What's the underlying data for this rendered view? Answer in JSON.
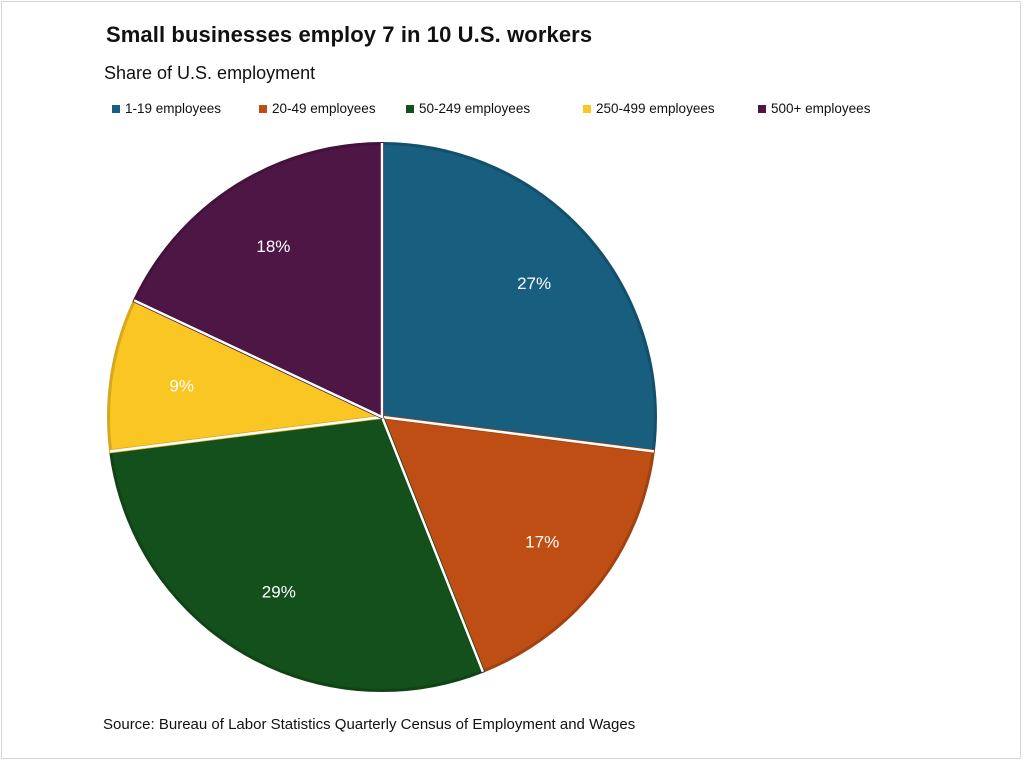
{
  "header": {
    "title": "Small businesses employ 7 in 10 U.S. workers",
    "subtitle": "Share of U.S. employment"
  },
  "footer": {
    "source": "Source:  Bureau of Labor Statistics Quarterly Census of Employment and Wages"
  },
  "chart_data": {
    "type": "pie",
    "title": "Small businesses employ 7 in 10 U.S. workers",
    "subtitle": "Share of U.S. employment",
    "legend_position": "top",
    "start_angle": "12 o'clock, clockwise",
    "slices": [
      {
        "label": "1-19 employees",
        "value": 27,
        "display": "27%",
        "color": "#175e7f"
      },
      {
        "label": "20-49 employees",
        "value": 17,
        "display": "17%",
        "color": "#bf4e14"
      },
      {
        "label": "50-249 employees",
        "value": 29,
        "display": "29%",
        "color": "#13501b"
      },
      {
        "label": "250-499 employees",
        "value": 9,
        "display": "9%",
        "color": "#fac623"
      },
      {
        "label": "500+ employees",
        "value": 18,
        "display": "18%",
        "color": "#4e1645"
      }
    ]
  }
}
